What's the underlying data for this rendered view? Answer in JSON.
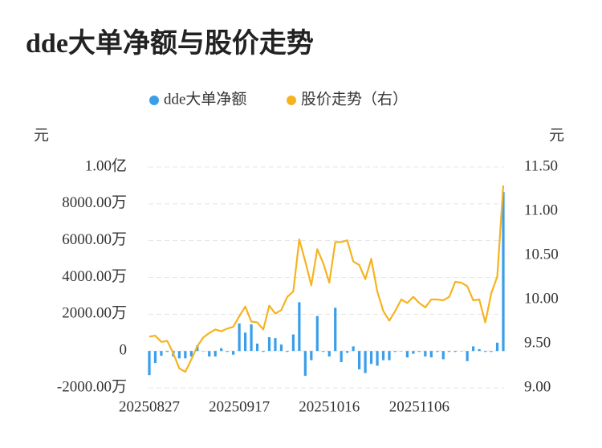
{
  "chart_data": {
    "type": "bar-line",
    "title": "dde大单净额与股价走势",
    "y_label": "元",
    "y2_label": "元",
    "categories": [
      "20250827",
      null,
      null,
      null,
      null,
      null,
      null,
      null,
      null,
      null,
      null,
      null,
      null,
      null,
      null,
      "20250917",
      null,
      null,
      null,
      null,
      null,
      null,
      null,
      null,
      null,
      null,
      null,
      null,
      null,
      null,
      "20251016",
      null,
      null,
      null,
      null,
      null,
      null,
      null,
      null,
      null,
      null,
      null,
      null,
      null,
      null,
      "20251106",
      null,
      null,
      null,
      null,
      null,
      null,
      null,
      null,
      null,
      null,
      null,
      null,
      null,
      null
    ],
    "series": [
      {
        "name": "dde大单净额",
        "color": "#3a9ee8",
        "type": "bar",
        "values": [
          -1310,
          -650,
          -260,
          -50,
          -300,
          -400,
          -400,
          -300,
          300,
          0,
          -300,
          -300,
          150,
          -50,
          -200,
          1500,
          1000,
          1450,
          400,
          -50,
          750,
          700,
          350,
          -50,
          900,
          2650,
          -1350,
          -500,
          1900,
          -50,
          -300,
          2350,
          -600,
          -100,
          250,
          -1000,
          -1200,
          -700,
          -800,
          -500,
          -500,
          -50,
          0,
          -350,
          -150,
          -50,
          -300,
          -350,
          -50,
          -450,
          -50,
          -50,
          0,
          -550,
          250,
          100,
          -50,
          -50,
          450,
          8650
        ]
      },
      {
        "name": "股价走势（右）",
        "color": "#f5b320",
        "type": "line",
        "axis": "y2",
        "values": [
          9.58,
          9.59,
          9.52,
          9.53,
          9.39,
          9.22,
          9.18,
          9.32,
          9.47,
          9.57,
          9.62,
          9.66,
          9.64,
          9.67,
          9.69,
          9.81,
          9.92,
          9.75,
          9.74,
          9.66,
          9.93,
          9.84,
          9.88,
          10.03,
          10.09,
          10.68,
          10.43,
          10.16,
          10.57,
          10.41,
          10.19,
          10.65,
          10.65,
          10.67,
          10.43,
          10.39,
          10.23,
          10.46,
          10.09,
          9.87,
          9.76,
          9.87,
          10.0,
          9.96,
          10.03,
          9.96,
          9.91,
          10.0,
          10.0,
          9.99,
          10.03,
          10.2,
          10.19,
          10.15,
          9.99,
          10.0,
          9.74,
          10.07,
          10.26,
          11.29
        ]
      }
    ],
    "ylim": [
      -2000,
      10000
    ],
    "yticks": [
      {
        "value": -2000,
        "label": "-2000.00万"
      },
      0,
      {
        "value": 2000,
        "label": "2000.00万"
      },
      {
        "value": 4000,
        "label": "4000.00万"
      },
      {
        "value": 6000,
        "label": "6000.00万"
      },
      {
        "value": 8000,
        "label": "8000.00万"
      },
      {
        "value": 10000,
        "label": "1.00亿"
      }
    ],
    "y2lim": [
      9,
      11.5
    ],
    "y2ticks": [
      {
        "value": 9,
        "label": "9.00"
      },
      {
        "value": 9.5,
        "label": "9.50"
      },
      {
        "value": 10,
        "label": "10.00"
      },
      {
        "value": 10.5,
        "label": "10.50"
      },
      {
        "value": 11,
        "label": "11.00"
      },
      {
        "value": 11.5,
        "label": "11.50"
      }
    ],
    "grid": true
  }
}
